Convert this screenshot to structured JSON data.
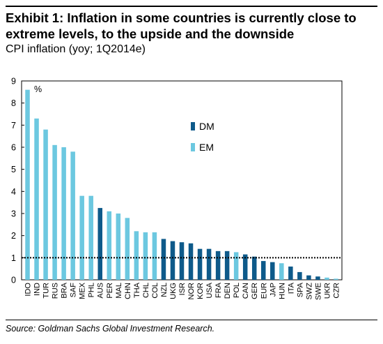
{
  "header": {
    "title": "Exhibit 1: Inflation in some countries is currently close to extreme levels, to the upside and the downside",
    "subtitle": "CPI inflation (yoy; 1Q2014e)"
  },
  "footer": {
    "source": "Source: Goldman Sachs Global Investment Research."
  },
  "colors": {
    "DM": "#0e5a8a",
    "EM": "#6cc8e0"
  },
  "chart_data": {
    "type": "bar",
    "title": "",
    "unit_label": "%",
    "xlabel": "",
    "ylabel": "",
    "ylim": [
      0,
      9
    ],
    "yticks": [
      0,
      1,
      2,
      3,
      4,
      5,
      6,
      7,
      8,
      9
    ],
    "grid": false,
    "reference_line": {
      "y": 1,
      "style": "dotted"
    },
    "legend": {
      "placement": "center",
      "entries": [
        "DM",
        "EM"
      ]
    },
    "categories": [
      "IDO",
      "IND",
      "TUR",
      "RUS",
      "BRA",
      "SAF",
      "MEX",
      "PHL",
      "AUS",
      "PER",
      "MAL",
      "CHN",
      "THA",
      "CHL",
      "COL",
      "NZL",
      "UKG",
      "ISR",
      "NOR",
      "KOR",
      "USA",
      "FRA",
      "DEN",
      "POL",
      "CAN",
      "GER",
      "EUR",
      "JAP",
      "HUN",
      "ITA",
      "SPA",
      "SWZ",
      "SWE",
      "UKR",
      "CZR"
    ],
    "values": [
      8.6,
      7.3,
      6.8,
      6.1,
      6.0,
      5.8,
      3.8,
      3.8,
      3.25,
      3.1,
      3.0,
      2.8,
      2.2,
      2.15,
      2.15,
      1.85,
      1.75,
      1.7,
      1.65,
      1.4,
      1.4,
      1.3,
      1.3,
      1.25,
      1.15,
      1.05,
      0.85,
      0.8,
      0.75,
      0.6,
      0.35,
      0.2,
      0.15,
      0.1,
      0.05
    ],
    "groups": [
      "EM",
      "EM",
      "EM",
      "EM",
      "EM",
      "EM",
      "EM",
      "EM",
      "DM",
      "EM",
      "EM",
      "EM",
      "EM",
      "EM",
      "EM",
      "DM",
      "DM",
      "DM",
      "DM",
      "DM",
      "DM",
      "DM",
      "DM",
      "EM",
      "DM",
      "DM",
      "DM",
      "DM",
      "EM",
      "DM",
      "DM",
      "DM",
      "DM",
      "EM",
      "EM"
    ]
  }
}
